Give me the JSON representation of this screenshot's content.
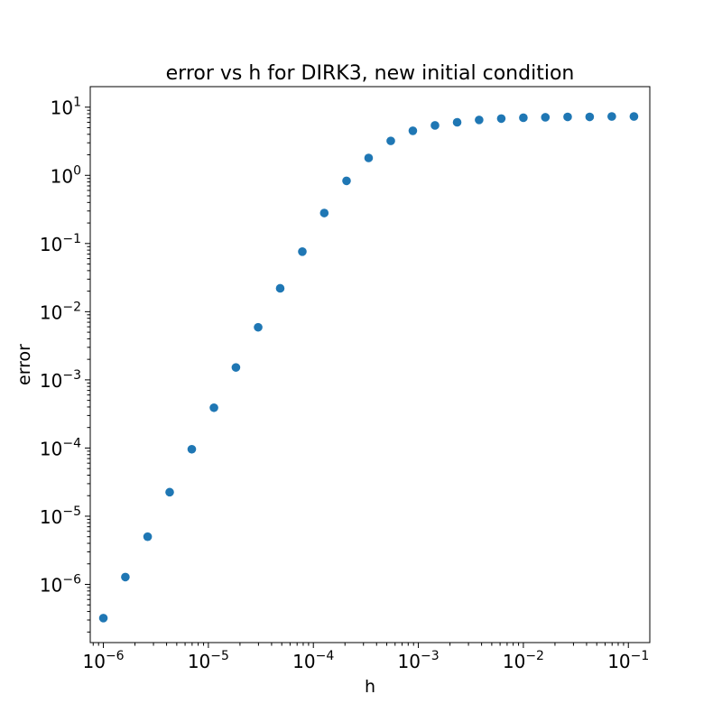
{
  "chart_data": {
    "type": "scatter",
    "title": "error vs h for DIRK3, new initial condition",
    "xlabel": "h",
    "ylabel": "error",
    "xscale": "log",
    "yscale": "log",
    "xlim": [
      7.5e-07,
      0.16
    ],
    "ylim": [
      1.4e-07,
      20
    ],
    "grid": false,
    "marker_color": "#1f77b4",
    "x_ticks": [
      {
        "base": "10",
        "exp": "−6",
        "value": 1e-06
      },
      {
        "base": "10",
        "exp": "−5",
        "value": 1e-05
      },
      {
        "base": "10",
        "exp": "−4",
        "value": 0.0001
      },
      {
        "base": "10",
        "exp": "−3",
        "value": 0.001
      },
      {
        "base": "10",
        "exp": "−2",
        "value": 0.01
      },
      {
        "base": "10",
        "exp": "−1",
        "value": 0.1
      }
    ],
    "y_ticks": [
      {
        "base": "10",
        "exp": "1",
        "value": 10
      },
      {
        "base": "10",
        "exp": "0",
        "value": 1
      },
      {
        "base": "10",
        "exp": "−1",
        "value": 0.1
      },
      {
        "base": "10",
        "exp": "−2",
        "value": 0.01
      },
      {
        "base": "10",
        "exp": "−3",
        "value": 0.001
      },
      {
        "base": "10",
        "exp": "−4",
        "value": 0.0001
      },
      {
        "base": "10",
        "exp": "−5",
        "value": 1e-05
      },
      {
        "base": "10",
        "exp": "−6",
        "value": 1e-06
      }
    ],
    "points": [
      {
        "x": 1e-06,
        "y": 3.2e-07
      },
      {
        "x": 1.62e-06,
        "y": 1.28e-06
      },
      {
        "x": 2.64e-06,
        "y": 5e-06
      },
      {
        "x": 4.28e-06,
        "y": 2.25e-05
      },
      {
        "x": 6.95e-06,
        "y": 9.6e-05
      },
      {
        "x": 1.13e-05,
        "y": 0.00039
      },
      {
        "x": 1.83e-05,
        "y": 0.00152
      },
      {
        "x": 2.98e-05,
        "y": 0.0059
      },
      {
        "x": 4.83e-05,
        "y": 0.022
      },
      {
        "x": 7.85e-05,
        "y": 0.076
      },
      {
        "x": 0.000127,
        "y": 0.28
      },
      {
        "x": 0.000207,
        "y": 0.83
      },
      {
        "x": 0.000336,
        "y": 1.8
      },
      {
        "x": 0.000546,
        "y": 3.2
      },
      {
        "x": 0.000886,
        "y": 4.5
      },
      {
        "x": 0.00144,
        "y": 5.4
      },
      {
        "x": 0.00234,
        "y": 6.0
      },
      {
        "x": 0.00379,
        "y": 6.5
      },
      {
        "x": 0.00616,
        "y": 6.8
      },
      {
        "x": 0.01,
        "y": 7.0
      },
      {
        "x": 0.0162,
        "y": 7.1
      },
      {
        "x": 0.0264,
        "y": 7.2
      },
      {
        "x": 0.0428,
        "y": 7.2
      },
      {
        "x": 0.0695,
        "y": 7.3
      },
      {
        "x": 0.113,
        "y": 7.3
      }
    ]
  }
}
